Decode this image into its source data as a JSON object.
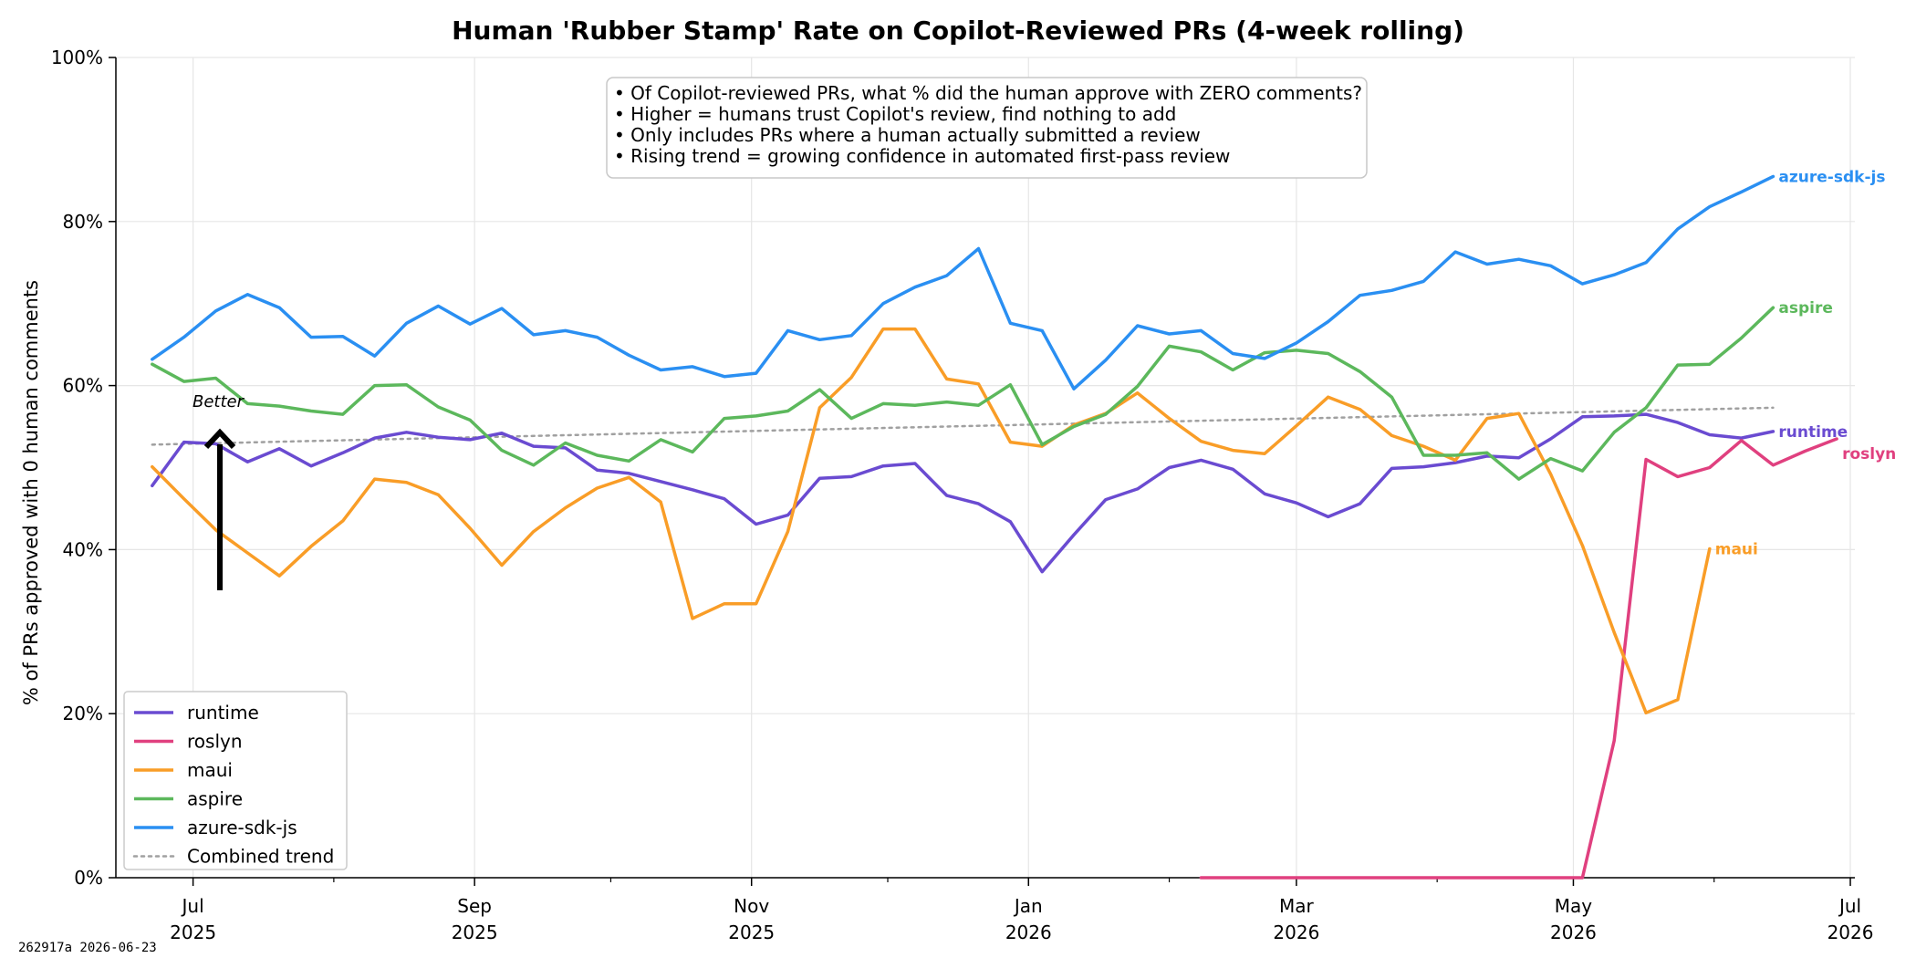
{
  "footer": "262917a  2026-06-23",
  "chart_data": {
    "type": "line",
    "title": "Human 'Rubber Stamp' Rate on Copilot-Reviewed PRs (4-week rolling)",
    "ylabel": "% of PRs approved with 0 human comments",
    "xlabel": "",
    "ylim": [
      0,
      100
    ],
    "xlim": [
      "2025-06-14",
      "2026-07-02"
    ],
    "y_ticks": [
      0,
      20,
      40,
      60,
      80,
      100
    ],
    "y_tick_labels": [
      "0%",
      "20%",
      "40%",
      "60%",
      "80%",
      "100%"
    ],
    "x_ticks": [
      {
        "date": "2025-07-01",
        "line1": "Jul",
        "line2": "2025"
      },
      {
        "date": "2025-09-01",
        "line1": "Sep",
        "line2": "2025"
      },
      {
        "date": "2025-11-01",
        "line1": "Nov",
        "line2": "2025"
      },
      {
        "date": "2026-01-01",
        "line1": "Jan",
        "line2": "2026"
      },
      {
        "date": "2026-03-01",
        "line1": "Mar",
        "line2": "2026"
      },
      {
        "date": "2026-05-01",
        "line1": "May",
        "line2": "2026"
      },
      {
        "date": "2026-07-01",
        "line1": "Jul",
        "line2": "2026"
      }
    ],
    "minor_x_ticks": [
      "2025-08-01",
      "2025-10-01",
      "2025-12-01",
      "2026-02-01",
      "2026-04-01",
      "2026-06-01"
    ],
    "grid": true,
    "legend_position": "lower-left",
    "annotation": [
      "• Of Copilot-reviewed PRs, what % did the human approve with ZERO comments?",
      "• Higher = humans trust Copilot's review, find nothing to add",
      "• Only includes PRs where a human actually submitted a review",
      "• Rising trend = growing confidence in automated first-pass review"
    ],
    "better_label": "Better",
    "weekly_x_start": "2025-06-22",
    "week_step_days": 7,
    "series": [
      {
        "name": "runtime",
        "color": "#6a4bd1",
        "end_label": "runtime",
        "values": [
          47.8,
          53.1,
          52.9,
          50.7,
          52.3,
          50.2,
          51.8,
          53.6,
          54.3,
          53.7,
          53.4,
          54.2,
          52.6,
          52.4,
          49.7,
          49.3,
          48.3,
          47.3,
          46.2,
          43.1,
          44.2,
          48.7,
          48.9,
          50.2,
          50.5,
          46.6,
          45.6,
          43.4,
          37.3,
          41.8,
          46.1,
          47.4,
          50.0,
          50.9,
          49.8,
          46.8,
          45.7,
          44.0,
          45.6,
          49.9,
          50.1,
          50.6,
          51.4,
          51.2,
          53.5,
          56.2,
          56.3,
          56.5,
          55.5,
          54.0,
          53.6,
          54.4
        ]
      },
      {
        "name": "roslyn",
        "color": "#e0407f",
        "end_label": "roslyn",
        "x_start": "2026-02-08",
        "values": [
          0,
          0,
          0,
          0,
          0,
          0,
          0,
          0,
          0,
          0,
          0,
          0,
          0,
          16.7,
          51.0,
          48.9,
          50.0,
          53.3,
          50.3,
          52.0,
          53.5
        ]
      },
      {
        "name": "maui",
        "color": "#f99d27",
        "end_label": "maui",
        "values": [
          50.1,
          46.2,
          42.4,
          39.6,
          36.8,
          40.4,
          43.5,
          48.6,
          48.2,
          46.7,
          42.6,
          38.1,
          42.2,
          45.1,
          47.5,
          48.8,
          45.8,
          31.6,
          33.4,
          33.4,
          42.2,
          57.3,
          61.0,
          66.9,
          66.9,
          60.8,
          60.2,
          53.1,
          52.6,
          55.2,
          56.6,
          59.1,
          56.0,
          53.2,
          52.1,
          51.7,
          55.1,
          58.6,
          57.1,
          53.9,
          52.6,
          50.9,
          56.0,
          56.6,
          49.2,
          40.5,
          29.9,
          20.1,
          21.7,
          40.1
        ]
      },
      {
        "name": "aspire",
        "color": "#5cb85c",
        "end_label": "aspire",
        "values": [
          62.6,
          60.5,
          60.9,
          57.8,
          57.5,
          56.9,
          56.5,
          60.0,
          60.1,
          57.4,
          55.8,
          52.1,
          50.3,
          53.0,
          51.5,
          50.8,
          53.4,
          51.9,
          56.0,
          56.3,
          56.9,
          59.5,
          56.0,
          57.8,
          57.6,
          58.0,
          57.6,
          60.1,
          52.8,
          55.0,
          56.5,
          59.9,
          64.8,
          64.1,
          61.9,
          64.0,
          64.3,
          63.9,
          61.7,
          58.6,
          51.5,
          51.5,
          51.8,
          48.6,
          51.1,
          49.6,
          54.3,
          57.3,
          62.5,
          62.6,
          65.8,
          69.5
        ]
      },
      {
        "name": "azure-sdk-js",
        "color": "#2a8ff2",
        "end_label": "azure-sdk-js",
        "values": [
          63.2,
          65.9,
          69.1,
          71.1,
          69.5,
          65.9,
          66.0,
          63.6,
          67.6,
          69.7,
          67.5,
          69.4,
          66.2,
          66.7,
          65.9,
          63.7,
          61.9,
          62.3,
          61.1,
          61.5,
          66.7,
          65.6,
          66.1,
          70.0,
          72.0,
          73.4,
          76.7,
          67.6,
          66.7,
          59.6,
          63.1,
          67.3,
          66.3,
          66.7,
          63.9,
          63.3,
          65.2,
          67.8,
          71.0,
          71.6,
          72.7,
          76.3,
          74.8,
          75.4,
          74.6,
          72.4,
          73.5,
          75.0,
          79.1,
          81.8,
          83.6,
          85.5
        ]
      }
    ],
    "trend": {
      "name": "Combined trend",
      "color": "#a0a0a0",
      "from": {
        "x": "2025-06-22",
        "y": 52.8
      },
      "to": {
        "x": "2026-06-14",
        "y": 57.3
      }
    }
  }
}
